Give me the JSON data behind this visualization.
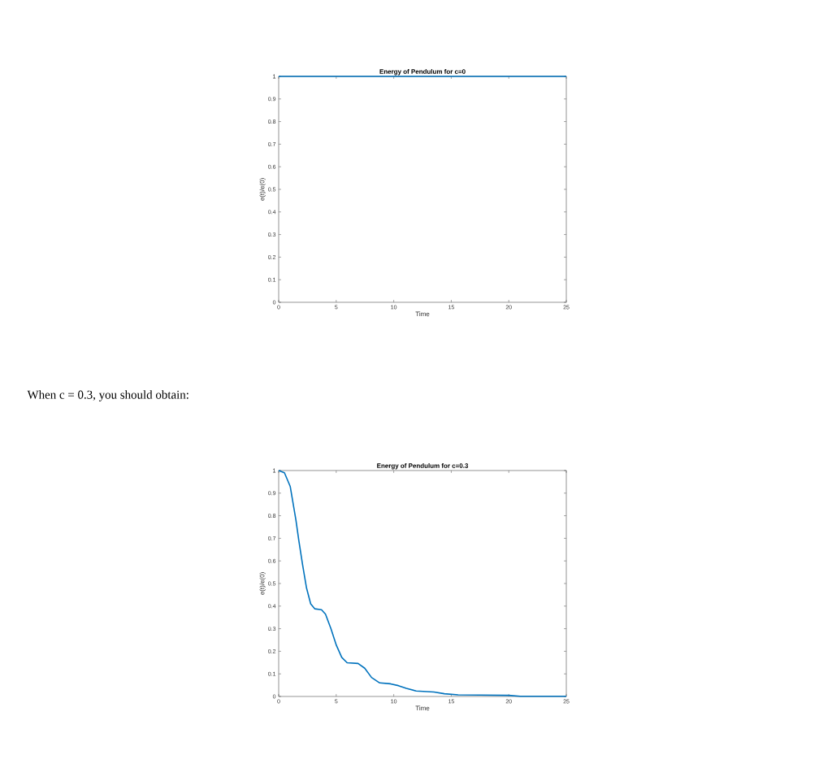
{
  "chart_data": [
    {
      "type": "line",
      "title": "Energy of Pendulum for c=0",
      "xlabel": "Time",
      "ylabel": "e(t)/e(0)",
      "xlim": [
        0,
        25
      ],
      "ylim": [
        0,
        1
      ],
      "xticks": [
        0,
        5,
        10,
        15,
        20,
        25
      ],
      "yticks": [
        0,
        0.1,
        0.2,
        0.3,
        0.4,
        0.5,
        0.6,
        0.7,
        0.8,
        0.9,
        1
      ],
      "series": [
        {
          "color": "#0072bd",
          "x": [
            0,
            25
          ],
          "values": [
            1,
            1
          ]
        }
      ]
    },
    {
      "type": "line",
      "title": "Energy of Pendulum for c=0.3",
      "xlabel": "Time",
      "ylabel": "e(t)/e(0)",
      "annotations": [
        "When c = 0.3, you should obtain:"
      ],
      "xlim": [
        0,
        25
      ],
      "ylim": [
        0,
        1
      ],
      "xticks": [
        0,
        5,
        10,
        15,
        20,
        25
      ],
      "yticks": [
        0,
        0.1,
        0.2,
        0.3,
        0.4,
        0.5,
        0.6,
        0.7,
        0.8,
        0.9,
        1
      ],
      "series": [
        {
          "color": "#0072bd",
          "x": [
            0,
            0.5,
            1.0,
            1.5,
            1.75,
            2.07,
            2.42,
            2.78,
            3.13,
            3.72,
            4.07,
            4.54,
            5.01,
            5.48,
            5.95,
            6.9,
            7.48,
            8.07,
            8.78,
            9.72,
            10.4,
            11.1,
            11.95,
            13.5,
            14.4,
            15.6,
            17.5,
            20,
            21,
            25
          ],
          "values": [
            1,
            0.99,
            0.93,
            0.78,
            0.69,
            0.585,
            0.48,
            0.41,
            0.388,
            0.384,
            0.364,
            0.3,
            0.227,
            0.173,
            0.149,
            0.146,
            0.125,
            0.084,
            0.06,
            0.056,
            0.048,
            0.036,
            0.024,
            0.02,
            0.012,
            0.007,
            0.006,
            0.005,
            0.001,
            0.001
          ]
        }
      ]
    }
  ]
}
